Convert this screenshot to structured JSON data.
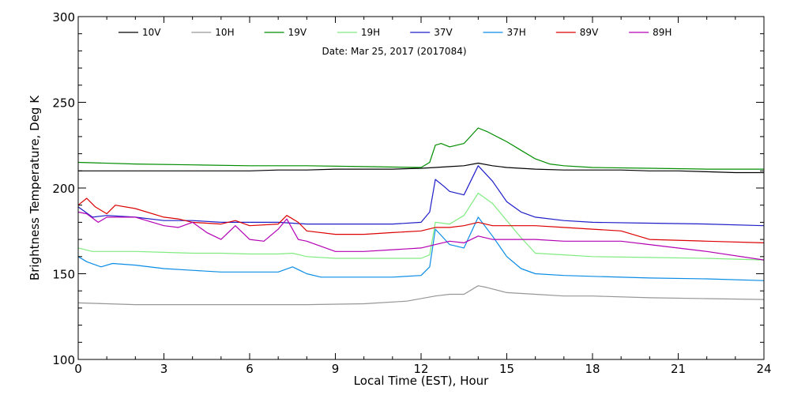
{
  "chart_data": {
    "type": "line",
    "subtitle": "Date: Mar 25, 2017 (2017084)",
    "xlabel": "Local Time (EST), Hour",
    "ylabel": "Brightness Temperature, Deg K",
    "xlim": [
      0,
      24
    ],
    "ylim": [
      100,
      300
    ],
    "xticks": [
      0,
      3,
      6,
      9,
      12,
      15,
      18,
      21,
      24
    ],
    "yticks": [
      100,
      150,
      200,
      250,
      300
    ],
    "grid": false,
    "legend_position": "top",
    "series": [
      {
        "name": "10V",
        "color": "#000000",
        "x": [
          0,
          1,
          2,
          3,
          4,
          5,
          6,
          7,
          8,
          9,
          10,
          11,
          12,
          12.5,
          13,
          13.5,
          14,
          14.5,
          15,
          16,
          17,
          18,
          19,
          20,
          21,
          22,
          23,
          24
        ],
        "y": [
          210,
          210,
          210,
          210,
          210,
          210,
          210,
          210.5,
          210.5,
          211,
          211,
          211,
          211.5,
          212,
          212.5,
          213,
          214.5,
          213,
          212,
          211,
          210.5,
          210.5,
          210.5,
          210,
          210,
          209.5,
          209,
          209
        ]
      },
      {
        "name": "10H",
        "color": "#969696",
        "x": [
          0,
          2,
          4,
          6,
          8,
          10,
          11.5,
          12.5,
          13,
          13.5,
          14,
          14.3,
          15,
          16,
          17,
          18,
          20,
          22,
          24
        ],
        "y": [
          133,
          132,
          132,
          132,
          132,
          132.5,
          134,
          137,
          138,
          138,
          143,
          142,
          139,
          138,
          137,
          137,
          136,
          135.5,
          135
        ]
      },
      {
        "name": "19V",
        "color": "#008c00",
        "x": [
          0,
          2,
          4,
          6,
          8,
          10,
          12,
          12.3,
          12.5,
          12.7,
          13,
          13.5,
          14,
          14.3,
          15,
          15.5,
          16,
          16.5,
          17,
          18,
          20,
          22,
          24
        ],
        "y": [
          215,
          214,
          213.5,
          213,
          213,
          212.5,
          212,
          215,
          225,
          226,
          224,
          226,
          235,
          233,
          227,
          222,
          217,
          214,
          213,
          212,
          211.5,
          211,
          211
        ]
      },
      {
        "name": "19H",
        "color": "#80ec80",
        "x": [
          0,
          0.5,
          1,
          2,
          3,
          4,
          5,
          6,
          7,
          7.5,
          8,
          9,
          10,
          11,
          12,
          12.3,
          12.5,
          13,
          13.5,
          14,
          14.5,
          15,
          15.5,
          16,
          17,
          18,
          20,
          22,
          24
        ],
        "y": [
          165,
          163,
          163,
          163,
          162.5,
          162,
          162,
          161.5,
          161.5,
          162,
          160,
          159,
          159,
          159,
          159,
          161,
          180,
          179,
          184,
          197,
          191,
          181,
          171,
          162,
          161,
          160,
          159.5,
          159,
          158
        ]
      },
      {
        "name": "37V",
        "color": "#1e1ec8",
        "x": [
          0,
          0.5,
          1,
          2,
          3,
          4,
          5,
          6,
          7,
          8,
          9,
          10,
          11,
          12,
          12.3,
          12.5,
          12.8,
          13,
          13.5,
          14,
          14.5,
          15,
          15.5,
          16,
          17,
          18,
          20,
          22,
          24
        ],
        "y": [
          189,
          183,
          184,
          183,
          181,
          181,
          180,
          180,
          180,
          179,
          179,
          179,
          179,
          180,
          186,
          205,
          201,
          198,
          196,
          213,
          204,
          192,
          186,
          183,
          181,
          180,
          179.5,
          179,
          178
        ]
      },
      {
        "name": "37H",
        "color": "#0a8ce6",
        "x": [
          0,
          0.3,
          0.8,
          1.2,
          2,
          3,
          4,
          5,
          6,
          7,
          7.5,
          8,
          8.5,
          9,
          10,
          11,
          12,
          12.3,
          12.5,
          13,
          13.5,
          14,
          14.5,
          15,
          15.5,
          16,
          17,
          18,
          20,
          22,
          24
        ],
        "y": [
          160,
          157,
          154,
          156,
          155,
          153,
          152,
          151,
          151,
          151,
          154,
          150,
          148,
          148,
          148,
          148,
          149,
          154,
          176,
          167,
          165,
          183,
          172,
          160,
          153,
          150,
          149,
          148.5,
          147.5,
          147,
          146
        ]
      },
      {
        "name": "89V",
        "color": "#dc0000",
        "x": [
          0,
          0.3,
          0.6,
          1,
          1.3,
          2,
          3,
          3.5,
          4,
          5,
          5.5,
          6,
          7,
          7.3,
          7.7,
          8,
          9,
          10,
          11,
          12,
          12.5,
          13,
          13.5,
          14,
          14.5,
          15,
          16,
          17,
          18,
          19,
          20,
          22,
          24
        ],
        "y": [
          190,
          194,
          189,
          185,
          190,
          188,
          183,
          182,
          180,
          179,
          181,
          178,
          179,
          184,
          180,
          175,
          173,
          173,
          174,
          175,
          177,
          177,
          178,
          180,
          178,
          178,
          178,
          177,
          176,
          175,
          170,
          169,
          168
        ]
      },
      {
        "name": "89H",
        "color": "#b400b4",
        "x": [
          0,
          0.3,
          0.7,
          1,
          1.3,
          2,
          3,
          3.5,
          4,
          4.5,
          5,
          5.5,
          6,
          6.5,
          7,
          7.3,
          7.7,
          8,
          8.5,
          9,
          10,
          11,
          12,
          12.5,
          13,
          13.5,
          14,
          14.5,
          15,
          16,
          17,
          18,
          19,
          20,
          22,
          24
        ],
        "y": [
          186,
          185,
          180,
          183,
          183,
          183,
          178,
          177,
          180,
          174,
          170,
          178,
          170,
          169,
          176,
          182,
          170,
          169,
          166,
          163,
          163,
          164,
          165,
          167,
          169,
          168,
          172,
          170,
          170,
          170,
          169,
          169,
          169,
          167,
          163,
          158
        ]
      }
    ]
  }
}
